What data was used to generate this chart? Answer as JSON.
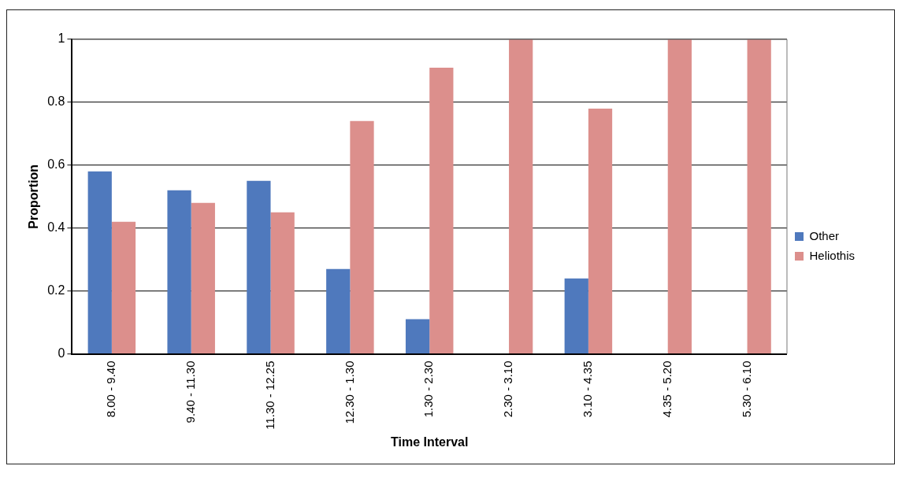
{
  "chart_data": {
    "type": "bar",
    "xlabel": "Time Interval",
    "ylabel": "Proportion",
    "categories": [
      "8.00 - 9.40",
      "9.40 - 11.30",
      "11.30 - 12.25",
      "12.30 - 1.30",
      "1.30 - 2.30",
      "2.30 - 3.10",
      "3.10 - 4.35",
      "4.35 - 5.20",
      "5.30 - 6.10"
    ],
    "series": [
      {
        "name": "Other",
        "color": "#4f79bd",
        "values": [
          0.58,
          0.52,
          0.55,
          0.27,
          0.11,
          0,
          0.24,
          0,
          0
        ]
      },
      {
        "name": "Heliothis",
        "color": "#dc8f8c",
        "values": [
          0.42,
          0.48,
          0.45,
          0.74,
          0.91,
          1,
          0.78,
          1,
          1
        ]
      }
    ],
    "ylim": [
      0,
      1
    ],
    "yticks": [
      0,
      0.2,
      0.4,
      0.6,
      0.8,
      1
    ],
    "grid": "y",
    "legend": "right"
  }
}
